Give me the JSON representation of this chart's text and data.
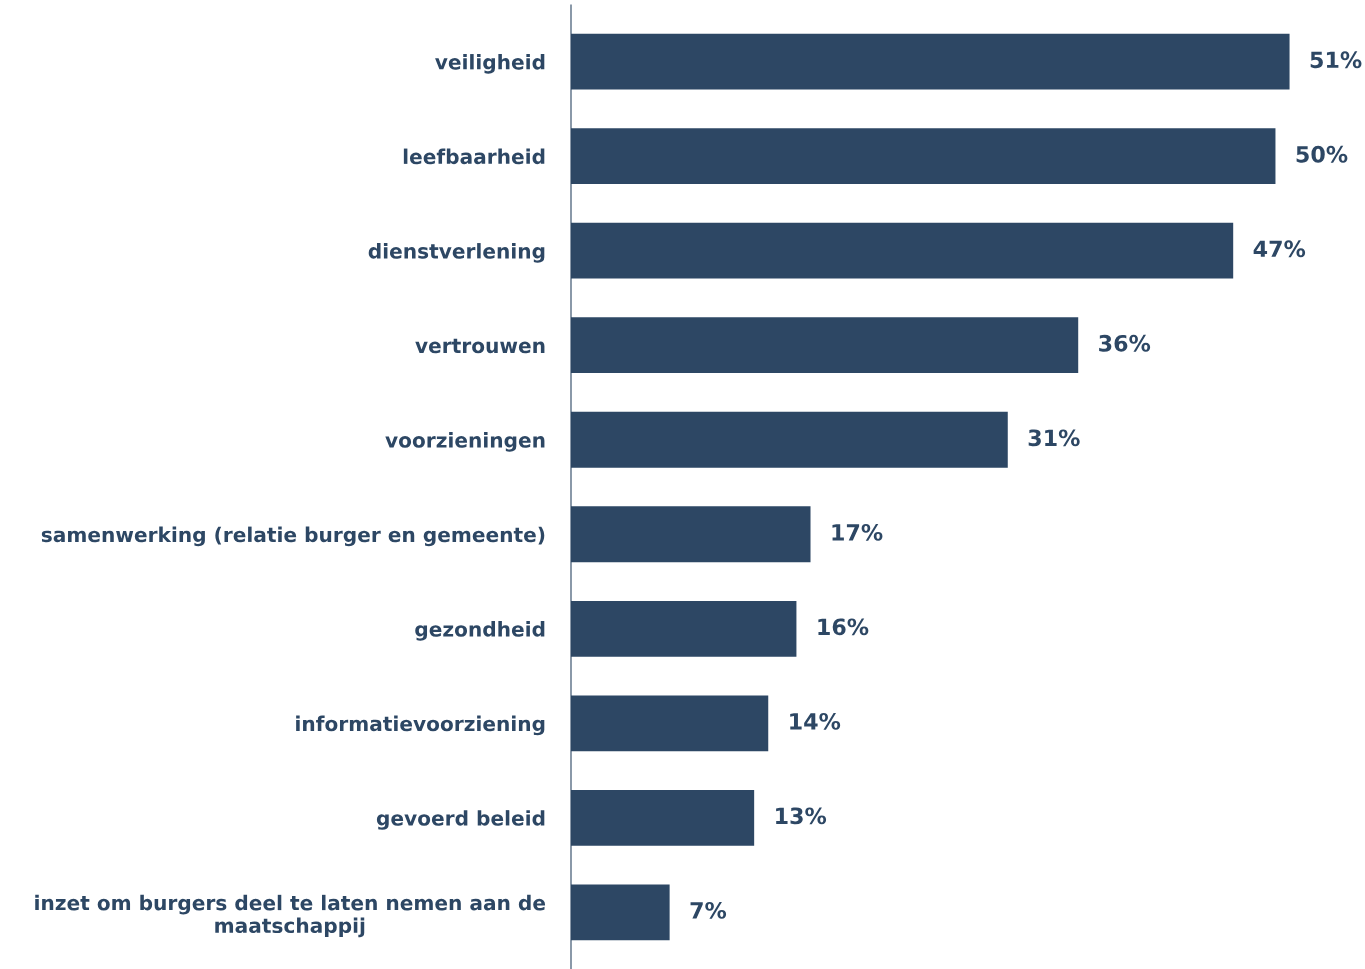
{
  "chart_data": {
    "type": "bar",
    "orientation": "horizontal",
    "categories": [
      "veiligheid",
      "leefbaarheid",
      "dienstverlening",
      "vertrouwen",
      "voorzieningen",
      "samenwerking (relatie burger en gemeente)",
      "gezondheid",
      "informatievoorziening",
      "gevoerd beleid",
      "inzet om burgers deel te laten nemen aan de\nmaatschappij"
    ],
    "values": [
      51,
      50,
      47,
      36,
      31,
      17,
      16,
      14,
      13,
      7
    ],
    "value_labels": [
      "51%",
      "50%",
      "47%",
      "36%",
      "31%",
      "17%",
      "16%",
      "14%",
      "13%",
      "7%"
    ],
    "color": "#2d4764"
  }
}
